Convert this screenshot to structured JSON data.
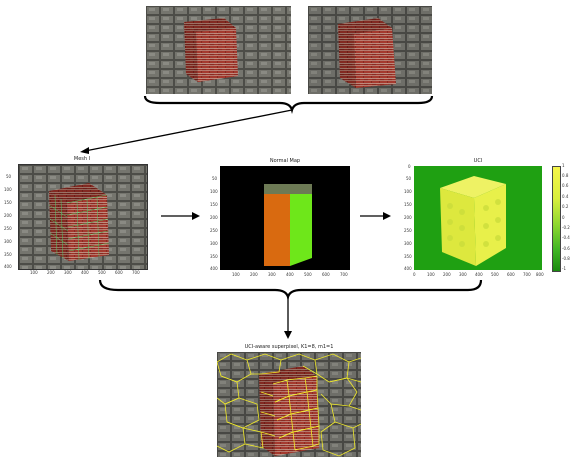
{
  "panels": {
    "mesh": {
      "title": "Mesh I",
      "y_ticks": [
        "50",
        "100",
        "150",
        "200",
        "250",
        "300",
        "350",
        "400"
      ],
      "x_ticks": [
        "100",
        "200",
        "300",
        "400",
        "500",
        "600",
        "700"
      ]
    },
    "normal": {
      "title": "Normal Map",
      "y_ticks": [
        "50",
        "100",
        "150",
        "200",
        "250",
        "300",
        "350",
        "400"
      ],
      "x_ticks": [
        "100",
        "200",
        "300",
        "400",
        "500",
        "600",
        "700"
      ]
    },
    "uci": {
      "title": "UCI",
      "y_ticks": [
        "0",
        "50",
        "100",
        "150",
        "200",
        "250",
        "300",
        "350",
        "400"
      ],
      "x_ticks": [
        "0",
        "100",
        "200",
        "300",
        "400",
        "500",
        "600",
        "700",
        "800"
      ],
      "colorbar_ticks": [
        "1",
        "0.8",
        "0.6",
        "0.4",
        "0.2",
        "0",
        "-0.2",
        "-0.4",
        "-0.6",
        "-0.8",
        "-1"
      ]
    },
    "superpixel": {
      "title": "UCI-aware superpixel, K1=8, m1=1"
    }
  },
  "colors": {
    "brick": "#8a2a22",
    "orange_face": "#d96a10",
    "green_face": "#6ee71a",
    "olive_top": "#6d7a55",
    "uci_bg": "#1fa012",
    "uci_block": "#e8f04a",
    "grid_yellow": "#f0ea2a"
  }
}
